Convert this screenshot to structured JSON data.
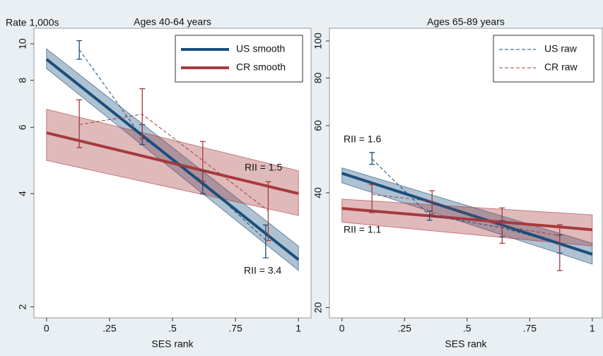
{
  "chart_data": [
    {
      "type": "line",
      "title": "Ages 40-64 years",
      "y_label": "Rate 1,000s",
      "x_label": "SES rank",
      "xlim": [
        -0.05,
        1.05
      ],
      "ylim": [
        1.87,
        11
      ],
      "log_y": true,
      "legend": "top-right",
      "xticks": [
        0,
        {
          "value": 0.25,
          "label": ".25"
        },
        {
          "value": 0.5,
          "label": ".5"
        },
        {
          "value": 0.75,
          "label": ".75"
        },
        1
      ],
      "yticks": [
        2,
        4,
        6,
        8,
        10
      ],
      "series": [
        {
          "name": "US smooth",
          "color": "#1b4f7c",
          "style": "solid",
          "x": [
            0,
            1
          ],
          "values": [
            9.1,
            2.67
          ],
          "band_low": [
            8.6,
            2.5
          ],
          "band_high": [
            9.7,
            2.9
          ]
        },
        {
          "name": "CR smooth",
          "color": "#a63a3d",
          "style": "solid",
          "x": [
            0,
            1
          ],
          "values": [
            5.8,
            4.0
          ],
          "band_low": [
            4.9,
            3.5
          ],
          "band_high": [
            6.7,
            4.6
          ]
        },
        {
          "color": "#1b4f7c",
          "style": "dashed",
          "x": [
            0.13,
            0.38,
            0.62,
            0.87
          ],
          "values": [
            9.65,
            5.63,
            4.31,
            3.01
          ],
          "ci_low": [
            9.1,
            5.4,
            4.0,
            2.7
          ],
          "ci_high": [
            10.2,
            6.1,
            4.6,
            3.3
          ]
        },
        {
          "color": "#a63a3d",
          "style": "dashed",
          "x": [
            0.13,
            0.38,
            0.62,
            0.88
          ],
          "values": [
            6.1,
            6.5,
            4.9,
            3.6
          ],
          "ci_low": [
            5.3,
            5.6,
            4.3,
            3.0
          ],
          "ci_high": [
            7.1,
            7.6,
            5.5,
            4.3
          ]
        }
      ],
      "annotations": [
        {
          "text": "RII = 1.5",
          "color": "#a63a3d"
        },
        {
          "text": "RII = 3.4",
          "color": "#1b4f7c"
        }
      ]
    },
    {
      "type": "line",
      "title": "Ages 65-89 years",
      "x_label": "SES rank",
      "xlim": [
        -0.05,
        1.04
      ],
      "ylim": [
        18.8,
        108
      ],
      "log_y": true,
      "legend": "top-right",
      "xticks": [
        0,
        {
          "value": 0.25,
          "label": ".25"
        },
        {
          "value": 0.5,
          "label": ".5"
        },
        {
          "value": 0.75,
          "label": ".75"
        },
        1
      ],
      "yticks": [
        20,
        40,
        60,
        80,
        100
      ],
      "series": [
        {
          "color": "#1b4f7c",
          "style": "solid",
          "x": [
            0,
            1
          ],
          "values": [
            45.0,
            27.6
          ],
          "band_low": [
            42.5,
            26.0
          ],
          "band_high": [
            46.5,
            29.5
          ]
        },
        {
          "color": "#a63a3d",
          "style": "solid",
          "x": [
            0,
            1
          ],
          "values": [
            36.4,
            32.0
          ],
          "band_low": [
            33.5,
            29.0
          ],
          "band_high": [
            38.5,
            35.0
          ]
        },
        {
          "name": "US raw",
          "color": "#1b4f7c",
          "style": "dashed",
          "x": [
            0.12,
            0.35,
            0.64,
            0.87
          ],
          "values": [
            49.1,
            34.9,
            32.4,
            29.4
          ],
          "ci_low": [
            47.5,
            33.9,
            30.7,
            27.8
          ],
          "ci_high": [
            51.0,
            35.8,
            33.8,
            31.0
          ]
        },
        {
          "name": "CR raw",
          "color": "#a63a3d",
          "style": "dashed",
          "x": [
            0.12,
            0.36,
            0.64,
            0.87
          ],
          "values": [
            39.6,
            38.0,
            32.7,
            30.9
          ],
          "ci_low": [
            35.5,
            35.2,
            29.5,
            25.0
          ],
          "ci_high": [
            42.0,
            40.5,
            36.5,
            33.0
          ]
        }
      ],
      "annotations": [
        {
          "text": "RII = 1.6",
          "color": "#1b4f7c"
        },
        {
          "text": "RII = 1.1",
          "color": "#a63a3d"
        }
      ]
    }
  ]
}
